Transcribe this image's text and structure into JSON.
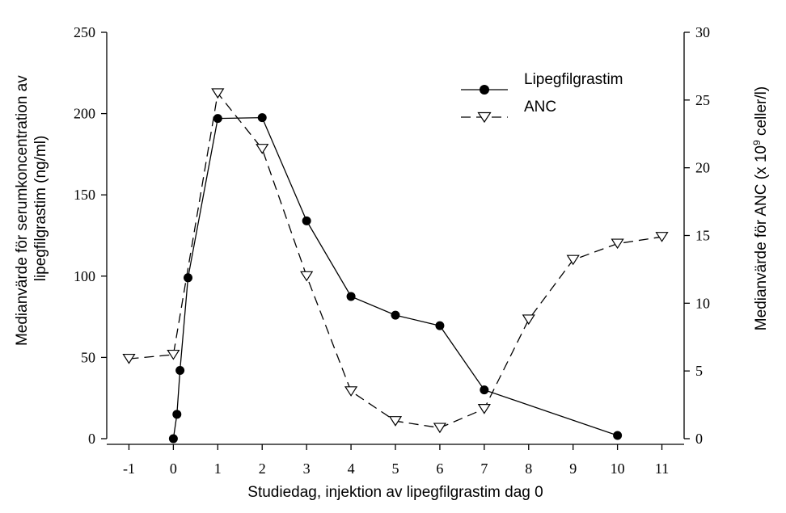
{
  "chart_data": {
    "type": "line",
    "xlabel": "Studiedag, injektion av lipegfilgrastim dag 0",
    "ylabel_left_lines": [
      "Medianvärde för serumkoncentration av",
      "lipegfilgrastim  (ng/ml)"
    ],
    "ylabel_right": {
      "prefix": "Medianvärde för ANC (x 10",
      "superscript": "9",
      "suffix": " celler/l)"
    },
    "x_ticks": [
      "-1",
      "0",
      "1",
      "2",
      "3",
      "4",
      "5",
      "6",
      "7",
      "8",
      "9",
      "10",
      "11"
    ],
    "xlim": [
      -1.5,
      11.5
    ],
    "y_left_ticks": [
      "0",
      "50",
      "100",
      "150",
      "200",
      "250"
    ],
    "ylim_left": [
      0,
      250
    ],
    "y_right_ticks": [
      "0",
      "5",
      "10",
      "15",
      "20",
      "25",
      "30"
    ],
    "ylim_right": [
      0,
      30
    ],
    "grid": false,
    "legend_position": "top-right",
    "series": [
      {
        "name": "Lipegfilgrastim",
        "axis": "left",
        "style": "solid",
        "marker": "filled-circle",
        "color": "#000000",
        "points": [
          [
            0,
            0
          ],
          [
            0.08,
            15
          ],
          [
            0.15,
            42
          ],
          [
            0.33,
            99
          ],
          [
            1,
            197
          ],
          [
            2,
            197.5
          ],
          [
            3,
            134
          ],
          [
            4,
            87.5
          ],
          [
            5,
            76
          ],
          [
            6,
            69.5
          ],
          [
            7,
            30
          ],
          [
            10,
            2
          ]
        ]
      },
      {
        "name": "ANC",
        "axis": "right",
        "style": "dashed",
        "marker": "open-triangle-down",
        "color": "#000000",
        "points": [
          [
            -1,
            5.9
          ],
          [
            0,
            6.2
          ],
          [
            1,
            25.5
          ],
          [
            2,
            21.4
          ],
          [
            3,
            12
          ],
          [
            4,
            3.5
          ],
          [
            5,
            1.3
          ],
          [
            6,
            0.8
          ],
          [
            7,
            2.2
          ],
          [
            8,
            8.8
          ],
          [
            9,
            13.2
          ],
          [
            10,
            14.4
          ],
          [
            11,
            14.9
          ]
        ]
      }
    ]
  }
}
